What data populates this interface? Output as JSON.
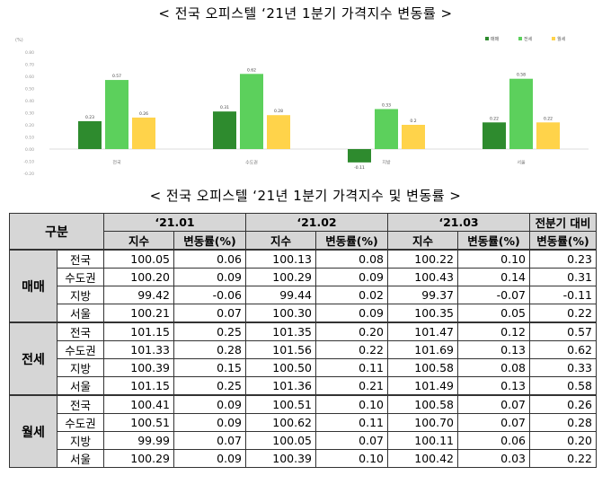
{
  "titles": {
    "chart_title": "< 전국 오피스텔 ‘21년 1분기 가격지수 변동률 >",
    "table_title": "< 전국 오피스텔 ‘21년 1분기 가격지수 및 변동률 >"
  },
  "chart_data": {
    "type": "bar",
    "categories": [
      "전국",
      "수도권",
      "지방",
      "서울"
    ],
    "series": [
      {
        "name": "매매",
        "values": [
          0.23,
          0.31,
          -0.11,
          0.22
        ],
        "color": "#2e8b2e"
      },
      {
        "name": "전세",
        "values": [
          0.57,
          0.62,
          0.33,
          0.58
        ],
        "color": "#5cd05c"
      },
      {
        "name": "월세",
        "values": [
          0.26,
          0.28,
          0.2,
          0.22
        ],
        "color": "#ffd34a"
      }
    ],
    "ylabel": "(%)",
    "ylim": [
      -0.2,
      0.8
    ],
    "yticks": [
      "0.80",
      "0.70",
      "0.60",
      "0.50",
      "0.40",
      "0.30",
      "0.20",
      "0.10",
      "0.00",
      "-0.10",
      "-0.20"
    ],
    "legend_position": "top-right",
    "data_labels": true,
    "grid": false
  },
  "table": {
    "header_group": "구분",
    "periods": [
      "‘21.01",
      "‘21.02",
      "‘21.03"
    ],
    "compare_label": "전분기 대비",
    "index_label": "지수",
    "rate_label": "변동률(%)",
    "groups": [
      {
        "type": "매매",
        "rows": [
          {
            "region": "전국",
            "vals": [
              "100.05",
              "0.06",
              "100.13",
              "0.08",
              "100.22",
              "0.10",
              "0.23"
            ]
          },
          {
            "region": "수도권",
            "vals": [
              "100.20",
              "0.09",
              "100.29",
              "0.09",
              "100.43",
              "0.14",
              "0.31"
            ]
          },
          {
            "region": "지방",
            "vals": [
              "99.42",
              "-0.06",
              "99.44",
              "0.02",
              "99.37",
              "-0.07",
              "-0.11"
            ]
          },
          {
            "region": "서울",
            "vals": [
              "100.21",
              "0.07",
              "100.30",
              "0.09",
              "100.35",
              "0.05",
              "0.22"
            ]
          }
        ]
      },
      {
        "type": "전세",
        "rows": [
          {
            "region": "전국",
            "vals": [
              "101.15",
              "0.25",
              "101.35",
              "0.20",
              "101.47",
              "0.12",
              "0.57"
            ]
          },
          {
            "region": "수도권",
            "vals": [
              "101.33",
              "0.28",
              "101.56",
              "0.22",
              "101.69",
              "0.13",
              "0.62"
            ]
          },
          {
            "region": "지방",
            "vals": [
              "100.39",
              "0.15",
              "100.50",
              "0.11",
              "100.58",
              "0.08",
              "0.33"
            ]
          },
          {
            "region": "서울",
            "vals": [
              "101.15",
              "0.25",
              "101.36",
              "0.21",
              "101.49",
              "0.13",
              "0.58"
            ]
          }
        ]
      },
      {
        "type": "월세",
        "rows": [
          {
            "region": "전국",
            "vals": [
              "100.41",
              "0.09",
              "100.51",
              "0.10",
              "100.58",
              "0.07",
              "0.26"
            ]
          },
          {
            "region": "수도권",
            "vals": [
              "100.51",
              "0.09",
              "100.62",
              "0.11",
              "100.70",
              "0.07",
              "0.28"
            ]
          },
          {
            "region": "지방",
            "vals": [
              "99.99",
              "0.07",
              "100.05",
              "0.07",
              "100.11",
              "0.06",
              "0.20"
            ]
          },
          {
            "region": "서울",
            "vals": [
              "100.29",
              "0.09",
              "100.39",
              "0.10",
              "100.42",
              "0.03",
              "0.22"
            ]
          }
        ]
      }
    ]
  }
}
